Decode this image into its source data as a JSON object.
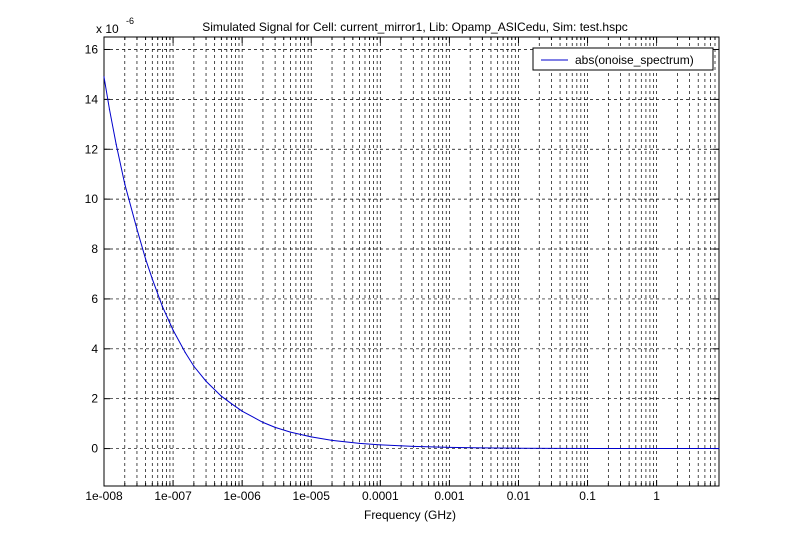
{
  "chart_data": {
    "type": "line",
    "title": "Simulated Signal for Cell: current_mirror1, Lib: Opamp_ASICedu, Sim: test.hspc",
    "xlabel": "Frequency (GHz)",
    "ylabel": "",
    "x_scale": "log",
    "xlim": [
      1e-08,
      8
    ],
    "ylim": [
      -1.5,
      16.5
    ],
    "y_multiplier_label": "x 10",
    "y_multiplier_exponent": "-6",
    "x_ticks": [
      {
        "value": 1e-08,
        "label": "1e-008"
      },
      {
        "value": 1e-07,
        "label": "1e-007"
      },
      {
        "value": 1e-06,
        "label": "1e-006"
      },
      {
        "value": 1e-05,
        "label": "1e-005"
      },
      {
        "value": 0.0001,
        "label": "0.0001"
      },
      {
        "value": 0.001,
        "label": "0.001"
      },
      {
        "value": 0.01,
        "label": "0.01"
      },
      {
        "value": 0.1,
        "label": "0.1"
      },
      {
        "value": 1,
        "label": "1"
      }
    ],
    "y_ticks": [
      {
        "value": 0,
        "label": "0"
      },
      {
        "value": 2,
        "label": "2"
      },
      {
        "value": 4,
        "label": "4"
      },
      {
        "value": 6,
        "label": "6"
      },
      {
        "value": 8,
        "label": "8"
      },
      {
        "value": 10,
        "label": "10"
      },
      {
        "value": 12,
        "label": "12"
      },
      {
        "value": 14,
        "label": "14"
      },
      {
        "value": 16,
        "label": "16"
      }
    ],
    "grid": true,
    "legend_position": "top-right",
    "series": [
      {
        "name": "abs(onoise_spectrum)",
        "color": "#0000cc",
        "x": [
          1e-08,
          1.2e-08,
          1.5e-08,
          2e-08,
          3e-08,
          4e-08,
          5e-08,
          7e-08,
          1e-07,
          1.5e-07,
          2e-07,
          3e-07,
          5e-07,
          7e-07,
          1e-06,
          2e-06,
          3e-06,
          5e-06,
          1e-05,
          2e-05,
          5e-05,
          0.0001,
          0.0003,
          0.001,
          0.003,
          0.01,
          0.1,
          1,
          8
        ],
        "y": [
          14.9,
          13.6,
          12.2,
          10.6,
          8.8,
          7.6,
          6.8,
          5.7,
          4.75,
          3.85,
          3.3,
          2.7,
          2.1,
          1.8,
          1.5,
          1.05,
          0.85,
          0.66,
          0.47,
          0.33,
          0.21,
          0.15,
          0.09,
          0.05,
          0.03,
          0.015,
          0.005,
          0.002,
          0.001
        ]
      }
    ]
  }
}
